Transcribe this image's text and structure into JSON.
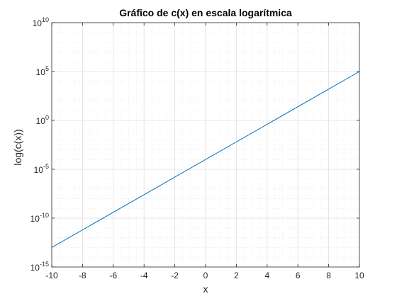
{
  "chart_data": {
    "type": "line",
    "title": "Gráfico de c(x) en escala logarítmica",
    "xlabel": "x",
    "ylabel": "log(c(x))",
    "xlim": [
      -10,
      10
    ],
    "ylim": [
      1e-15,
      10000000000.0
    ],
    "yscale": "log",
    "grid": true,
    "minor_grid": true,
    "x_ticks": [
      -10,
      -8,
      -6,
      -4,
      -2,
      0,
      2,
      4,
      6,
      8,
      10
    ],
    "y_ticks": [
      {
        "base": "10",
        "exp": "-15",
        "value": 1e-15
      },
      {
        "base": "10",
        "exp": "-10",
        "value": 1e-10
      },
      {
        "base": "10",
        "exp": "-5",
        "value": 1e-05
      },
      {
        "base": "10",
        "exp": "0",
        "value": 1
      },
      {
        "base": "10",
        "exp": "5",
        "value": 100000.0
      },
      {
        "base": "10",
        "exp": "10",
        "value": 10000000000.0
      }
    ],
    "series": [
      {
        "color": "#0072BD",
        "x": [
          -10,
          10
        ],
        "y": [
          1e-13,
          100000.0
        ]
      }
    ]
  }
}
